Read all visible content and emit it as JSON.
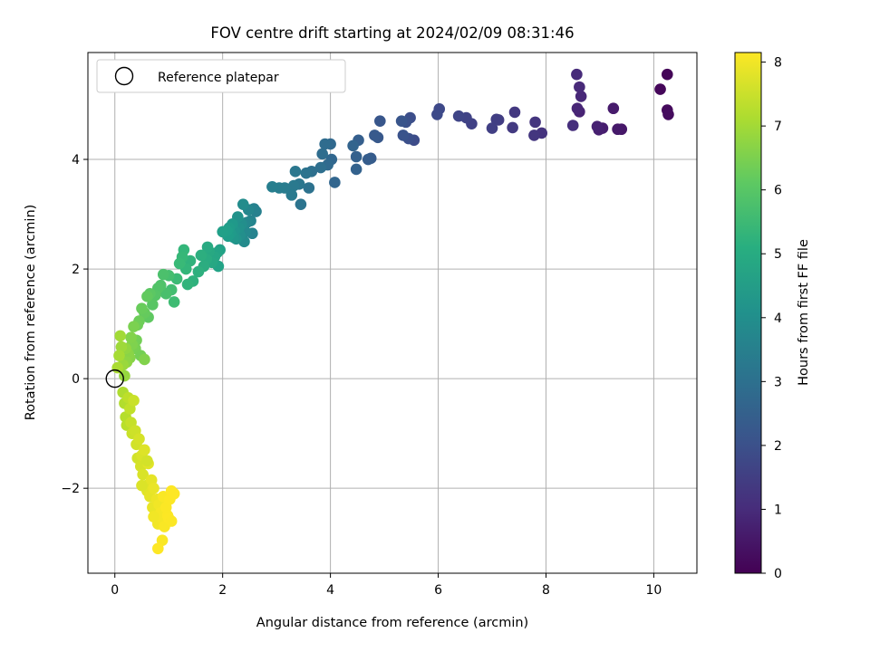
{
  "chart_data": {
    "type": "scatter",
    "title": "FOV centre drift starting at 2024/02/09 08:31:46",
    "xlabel": "Angular distance from reference (arcmin)",
    "ylabel": "Rotation from reference (arcmin)",
    "xlim": [
      -0.5,
      10.8
    ],
    "ylim": [
      -3.55,
      5.95
    ],
    "xticks": [
      0,
      2,
      4,
      6,
      8,
      10
    ],
    "xtick_labels": [
      "0",
      "2",
      "4",
      "6",
      "8",
      "10"
    ],
    "yticks": [
      -2,
      0,
      2,
      4
    ],
    "ytick_labels": [
      "−2",
      "0",
      "2",
      "4"
    ],
    "grid": true,
    "legend": {
      "placement": "top-left",
      "entries": [
        "Reference platepar"
      ]
    },
    "reference_point": {
      "x": 0,
      "y": 0
    },
    "colorbar": {
      "label": "Hours from first FF file",
      "range": [
        0,
        8.15
      ],
      "ticks": [
        0,
        1,
        2,
        3,
        4,
        5,
        6,
        7,
        8
      ],
      "tick_labels": [
        "0",
        "1",
        "2",
        "3",
        "4",
        "5",
        "6",
        "7",
        "8"
      ],
      "colormap": "viridis"
    },
    "points": [
      [
        10.25,
        5.55,
        0.1
      ],
      [
        10.12,
        5.28,
        0.15
      ],
      [
        10.25,
        4.9,
        0.2
      ],
      [
        10.27,
        4.82,
        0.25
      ],
      [
        9.4,
        4.55,
        0.5
      ],
      [
        9.33,
        4.55,
        0.55
      ],
      [
        9.25,
        4.93,
        0.6
      ],
      [
        9.05,
        4.57,
        0.65
      ],
      [
        8.98,
        4.54,
        0.7
      ],
      [
        8.95,
        4.6,
        0.75
      ],
      [
        8.62,
        4.87,
        0.8
      ],
      [
        8.58,
        4.93,
        0.85
      ],
      [
        8.65,
        5.15,
        0.9
      ],
      [
        8.62,
        5.32,
        0.95
      ],
      [
        8.57,
        5.55,
        1.0
      ],
      [
        8.5,
        4.62,
        1.1
      ],
      [
        7.92,
        4.48,
        1.2
      ],
      [
        7.8,
        4.68,
        1.25
      ],
      [
        7.78,
        4.44,
        1.3
      ],
      [
        7.42,
        4.86,
        1.35
      ],
      [
        7.38,
        4.58,
        1.4
      ],
      [
        7.12,
        4.72,
        1.45
      ],
      [
        7.08,
        4.73,
        1.5
      ],
      [
        7.0,
        4.57,
        1.55
      ],
      [
        6.62,
        4.65,
        1.6
      ],
      [
        6.52,
        4.76,
        1.65
      ],
      [
        6.38,
        4.79,
        1.7
      ],
      [
        6.02,
        4.92,
        1.8
      ],
      [
        5.98,
        4.82,
        1.85
      ],
      [
        5.55,
        4.35,
        1.9
      ],
      [
        5.48,
        4.76,
        1.95
      ],
      [
        5.45,
        4.38,
        2.0
      ],
      [
        5.4,
        4.68,
        2.05
      ],
      [
        5.35,
        4.44,
        2.1
      ],
      [
        5.32,
        4.7,
        2.15
      ],
      [
        4.92,
        4.7,
        2.2
      ],
      [
        4.88,
        4.4,
        2.25
      ],
      [
        4.82,
        4.44,
        2.3
      ],
      [
        4.75,
        4.02,
        2.35
      ],
      [
        4.7,
        4.0,
        2.4
      ],
      [
        4.52,
        4.35,
        2.45
      ],
      [
        4.48,
        4.05,
        2.5
      ],
      [
        4.48,
        3.82,
        2.55
      ],
      [
        4.42,
        4.25,
        2.6
      ],
      [
        4.08,
        3.58,
        2.65
      ],
      [
        4.02,
        4.0,
        2.7
      ],
      [
        4.0,
        4.28,
        2.75
      ],
      [
        3.95,
        3.9,
        2.8
      ],
      [
        3.9,
        4.28,
        2.85
      ],
      [
        3.85,
        4.1,
        2.9
      ],
      [
        3.82,
        3.85,
        2.95
      ],
      [
        3.65,
        3.78,
        3.0
      ],
      [
        3.6,
        3.48,
        3.05
      ],
      [
        3.55,
        3.75,
        3.1
      ],
      [
        3.45,
        3.18,
        3.15
      ],
      [
        3.42,
        3.55,
        3.2
      ],
      [
        3.35,
        3.78,
        3.25
      ],
      [
        3.32,
        3.52,
        3.3
      ],
      [
        3.28,
        3.35,
        3.35
      ],
      [
        3.15,
        3.48,
        3.4
      ],
      [
        3.05,
        3.48,
        3.45
      ],
      [
        2.92,
        3.5,
        3.5
      ],
      [
        2.62,
        3.05,
        3.55
      ],
      [
        2.58,
        3.1,
        3.6
      ],
      [
        2.55,
        2.65,
        3.65
      ],
      [
        2.52,
        2.88,
        3.7
      ],
      [
        2.48,
        3.08,
        3.75
      ],
      [
        2.45,
        2.85,
        3.8
      ],
      [
        2.42,
        2.68,
        3.85
      ],
      [
        2.4,
        2.5,
        3.9
      ],
      [
        2.38,
        3.18,
        3.95
      ],
      [
        2.35,
        2.82,
        4.0
      ],
      [
        2.32,
        2.62,
        4.05
      ],
      [
        2.3,
        2.75,
        4.1
      ],
      [
        2.28,
        2.95,
        4.15
      ],
      [
        2.25,
        2.55,
        4.2
      ],
      [
        2.22,
        2.7,
        4.25
      ],
      [
        2.2,
        2.58,
        4.3
      ],
      [
        2.18,
        2.82,
        4.35
      ],
      [
        2.15,
        2.65,
        4.4
      ],
      [
        2.12,
        2.75,
        4.45
      ],
      [
        2.1,
        2.6,
        4.5
      ],
      [
        2.08,
        2.7,
        4.55
      ],
      [
        2.0,
        2.68,
        4.6
      ],
      [
        1.95,
        2.35,
        4.65
      ],
      [
        1.92,
        2.05,
        4.7
      ],
      [
        1.9,
        2.3,
        4.75
      ],
      [
        1.85,
        2.22,
        4.8
      ],
      [
        1.8,
        2.12,
        4.85
      ],
      [
        1.75,
        2.32,
        4.9
      ],
      [
        1.72,
        2.4,
        4.95
      ],
      [
        1.7,
        2.18,
        5.0
      ],
      [
        1.65,
        2.05,
        5.05
      ],
      [
        1.6,
        2.25,
        5.1
      ],
      [
        1.55,
        1.95,
        5.15
      ],
      [
        1.45,
        1.78,
        5.2
      ],
      [
        1.4,
        2.15,
        5.25
      ],
      [
        1.35,
        1.72,
        5.3
      ],
      [
        1.32,
        2.0,
        5.35
      ],
      [
        1.28,
        2.35,
        5.4
      ],
      [
        1.25,
        2.22,
        5.45
      ],
      [
        1.2,
        2.1,
        5.5
      ],
      [
        1.15,
        1.82,
        5.55
      ],
      [
        1.1,
        1.4,
        5.6
      ],
      [
        1.05,
        1.62,
        5.65
      ],
      [
        1.0,
        1.88,
        5.7
      ],
      [
        0.95,
        1.55,
        5.75
      ],
      [
        0.9,
        1.9,
        5.8
      ],
      [
        0.85,
        1.7,
        5.85
      ],
      [
        0.8,
        1.65,
        5.9
      ],
      [
        0.75,
        1.52,
        5.95
      ],
      [
        0.7,
        1.35,
        6.0
      ],
      [
        0.65,
        1.55,
        6.05
      ],
      [
        0.62,
        1.12,
        6.1
      ],
      [
        0.6,
        1.5,
        6.15
      ],
      [
        0.55,
        1.2,
        6.2
      ],
      [
        0.5,
        1.28,
        6.25
      ],
      [
        0.45,
        1.05,
        6.3
      ],
      [
        0.42,
        0.98,
        6.35
      ],
      [
        0.4,
        0.7,
        6.4
      ],
      [
        0.38,
        0.55,
        6.45
      ],
      [
        0.35,
        0.95,
        6.5
      ],
      [
        0.32,
        0.62,
        6.55
      ],
      [
        0.3,
        0.75,
        6.6
      ],
      [
        0.28,
        0.38,
        6.65
      ],
      [
        0.25,
        0.45,
        6.7
      ],
      [
        0.22,
        0.3,
        6.75
      ],
      [
        0.2,
        0.55,
        6.8
      ],
      [
        0.18,
        0.05,
        6.85
      ],
      [
        0.15,
        0.25,
        6.9
      ],
      [
        0.12,
        0.58,
        6.95
      ],
      [
        0.1,
        0.78,
        7.0
      ],
      [
        0.08,
        0.42,
        7.05
      ],
      [
        0.05,
        0.2,
        7.1
      ],
      [
        0.48,
        0.42,
        6.42
      ],
      [
        0.55,
        0.35,
        6.58
      ],
      [
        0.15,
        -0.25,
        7.15
      ],
      [
        0.18,
        -0.45,
        7.2
      ],
      [
        0.2,
        -0.7,
        7.25
      ],
      [
        0.22,
        -0.85,
        7.3
      ],
      [
        0.25,
        -0.35,
        7.35
      ],
      [
        0.28,
        -0.55,
        7.4
      ],
      [
        0.3,
        -0.8,
        7.45
      ],
      [
        0.32,
        -1.0,
        7.5
      ],
      [
        0.35,
        -0.4,
        7.5
      ],
      [
        0.38,
        -0.95,
        7.55
      ],
      [
        0.4,
        -1.2,
        7.6
      ],
      [
        0.42,
        -1.45,
        7.6
      ],
      [
        0.45,
        -1.1,
        7.65
      ],
      [
        0.48,
        -1.6,
        7.65
      ],
      [
        0.5,
        -1.4,
        7.7
      ],
      [
        0.52,
        -1.75,
        7.7
      ],
      [
        0.55,
        -1.3,
        7.75
      ],
      [
        0.58,
        -1.95,
        7.75
      ],
      [
        0.6,
        -2.05,
        7.8
      ],
      [
        0.62,
        -1.55,
        7.8
      ],
      [
        0.65,
        -2.15,
        7.85
      ],
      [
        0.68,
        -1.85,
        7.85
      ],
      [
        0.7,
        -2.35,
        7.9
      ],
      [
        0.72,
        -2.0,
        7.9
      ],
      [
        0.75,
        -2.5,
        7.95
      ],
      [
        0.78,
        -2.2,
        7.95
      ],
      [
        0.8,
        -2.65,
        8.0
      ],
      [
        0.82,
        -2.3,
        8.0
      ],
      [
        0.85,
        -2.45,
        8.05
      ],
      [
        0.88,
        -2.55,
        8.05
      ],
      [
        0.9,
        -2.15,
        8.1
      ],
      [
        0.92,
        -2.7,
        8.1
      ],
      [
        0.95,
        -2.35,
        8.12
      ],
      [
        0.98,
        -2.5,
        8.12
      ],
      [
        1.0,
        -2.55,
        8.14
      ],
      [
        1.02,
        -2.2,
        8.14
      ],
      [
        1.05,
        -2.05,
        8.15
      ],
      [
        1.1,
        -2.1,
        8.15
      ],
      [
        0.72,
        -2.52,
        8.0
      ],
      [
        0.88,
        -2.95,
        8.1
      ],
      [
        0.8,
        -3.1,
        8.15
      ],
      [
        1.05,
        -2.6,
        8.13
      ],
      [
        0.6,
        -1.5,
        7.62
      ],
      [
        0.5,
        -1.95,
        7.72
      ]
    ]
  }
}
